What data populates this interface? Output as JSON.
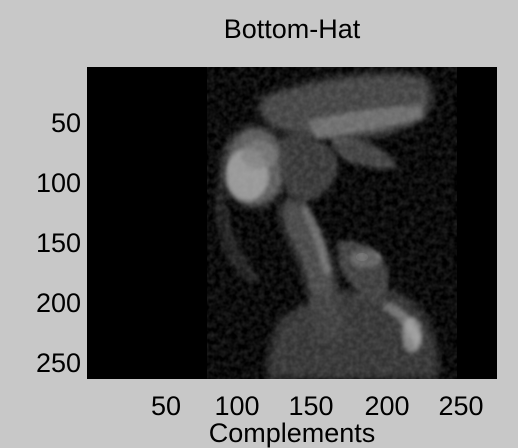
{
  "figure": {
    "title": "Bottom-Hat",
    "xlabel": "Complements",
    "y_ticks": [
      "50",
      "100",
      "150",
      "200",
      "250"
    ],
    "x_ticks": [
      "50",
      "100",
      "150",
      "200",
      "250"
    ],
    "colors": {
      "figure_background": "#c8c8c8",
      "image_background": "#000000"
    },
    "image": {
      "description_icon": "grayscale-mri-image",
      "colormap": "gray"
    }
  }
}
